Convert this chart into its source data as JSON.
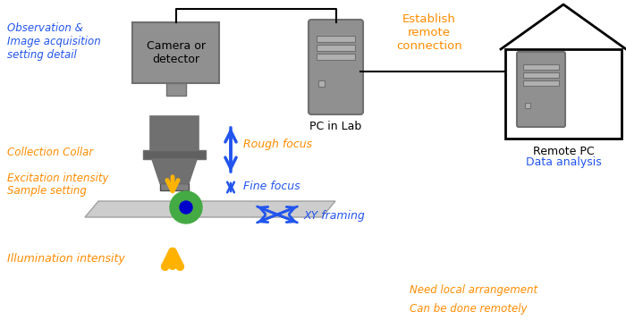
{
  "bg_color": "#ffffff",
  "orange": "#FF8C00",
  "blue": "#2255EE",
  "gray_dark": "#707070",
  "gray_med": "#909090",
  "gray_light": "#B0B0B0",
  "gold": "#FFB300",
  "green": "#44AA44",
  "dark_blue_sample": "#0000CC",
  "slide_color": "#C8C8C8",
  "black": "#000000",
  "text_obs": "Observation &\nImage acquisition\nsetting detail",
  "text_collar": "Collection Collar",
  "text_excitation": "Excitation intensity",
  "text_sample": "Sample setting",
  "text_illum": "Illumination intensity",
  "text_rough": "Rough focus",
  "text_fine": "Fine focus",
  "text_xy": "XY framing",
  "text_camera": "Camera or\ndetector",
  "text_pclab": "PC in Lab",
  "text_establish": "Establish\nremote\nconnection",
  "text_remotepc": "Remote PC",
  "text_analysis": "Data analysis",
  "text_need": "Need local arrangement\nCan be done remotely"
}
